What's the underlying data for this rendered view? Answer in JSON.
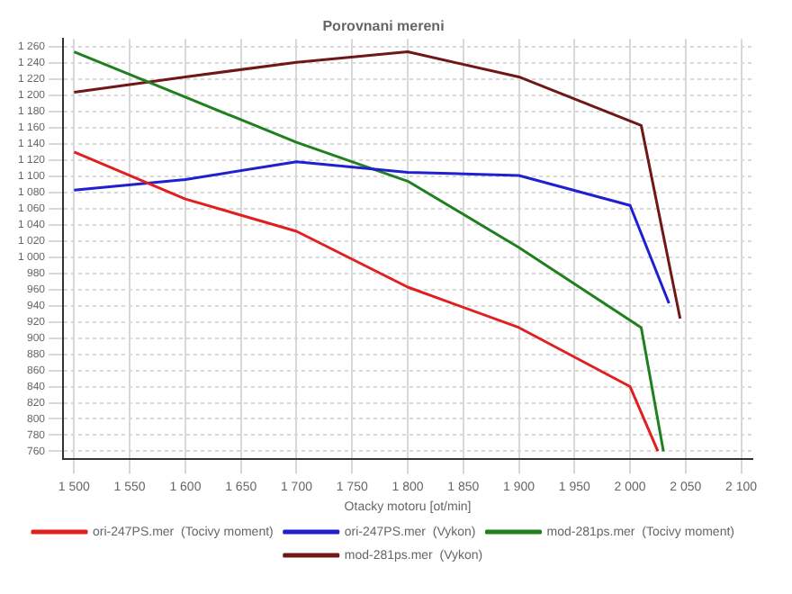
{
  "chart_data": {
    "type": "line",
    "title": "Porovnani mereni",
    "xlabel": "Otacky motoru [ot/min]",
    "xlim": [
      1490,
      2110
    ],
    "xticks": [
      {
        "value": 1500,
        "label": "1 500"
      },
      {
        "value": 1550,
        "label": "1 550"
      },
      {
        "value": 1600,
        "label": "1 600"
      },
      {
        "value": 1650,
        "label": "1 650"
      },
      {
        "value": 1700,
        "label": "1 700"
      },
      {
        "value": 1750,
        "label": "1 750"
      },
      {
        "value": 1800,
        "label": "1 800"
      },
      {
        "value": 1850,
        "label": "1 850"
      },
      {
        "value": 1900,
        "label": "1 900"
      },
      {
        "value": 1950,
        "label": "1 950"
      },
      {
        "value": 2000,
        "label": "2 000"
      },
      {
        "value": 2050,
        "label": "2 050"
      },
      {
        "value": 2100,
        "label": "2 100"
      }
    ],
    "ylim": [
      750,
      1270
    ],
    "yticks": [
      760,
      780,
      800,
      820,
      840,
      860,
      880,
      900,
      920,
      940,
      960,
      980,
      {
        "value": 1000,
        "label": "1 000"
      },
      {
        "value": 1020,
        "label": "1 020"
      },
      {
        "value": 1040,
        "label": "1 040"
      },
      {
        "value": 1060,
        "label": "1 060"
      },
      {
        "value": 1080,
        "label": "1 080"
      },
      {
        "value": 1100,
        "label": "1 100"
      },
      {
        "value": 1120,
        "label": "1 120"
      },
      {
        "value": 1140,
        "label": "1 140"
      },
      {
        "value": 1160,
        "label": "1 160"
      },
      {
        "value": 1180,
        "label": "1 180"
      },
      {
        "value": 1200,
        "label": "1 200"
      },
      {
        "value": 1220,
        "label": "1 220"
      },
      {
        "value": 1240,
        "label": "1 240"
      },
      {
        "value": 1260,
        "label": "1 260"
      }
    ],
    "grid": true,
    "legend": "bottom",
    "marker": "none",
    "line_style": "solid",
    "series": [
      {
        "name": "ori-247PS.mer  (Tocivy moment)",
        "color": "#e02020",
        "x": [
          1500,
          1600,
          1700,
          1800,
          1900,
          2000,
          2025
        ],
        "values": [
          1130,
          1072,
          1032,
          963,
          913,
          840,
          760
        ]
      },
      {
        "name": "ori-247PS.mer  (Vykon)",
        "color": "#2020d0",
        "x": [
          1500,
          1600,
          1700,
          1800,
          1900,
          2000,
          2035
        ],
        "values": [
          1083,
          1096,
          1118,
          1105,
          1101,
          1064,
          943
        ]
      },
      {
        "name": "mod-281ps.mer  (Tocivy moment)",
        "color": "#208020",
        "x": [
          1500,
          1600,
          1700,
          1800,
          1900,
          2010,
          2030
        ],
        "values": [
          1254,
          1198,
          1142,
          1094,
          1012,
          913,
          760
        ]
      },
      {
        "name": "mod-281ps.mer  (Vykon)",
        "color": "#701818",
        "x": [
          1500,
          1600,
          1700,
          1800,
          1900,
          2010,
          2045
        ],
        "values": [
          1204,
          1223,
          1241,
          1254,
          1223,
          1163,
          924
        ]
      }
    ]
  }
}
